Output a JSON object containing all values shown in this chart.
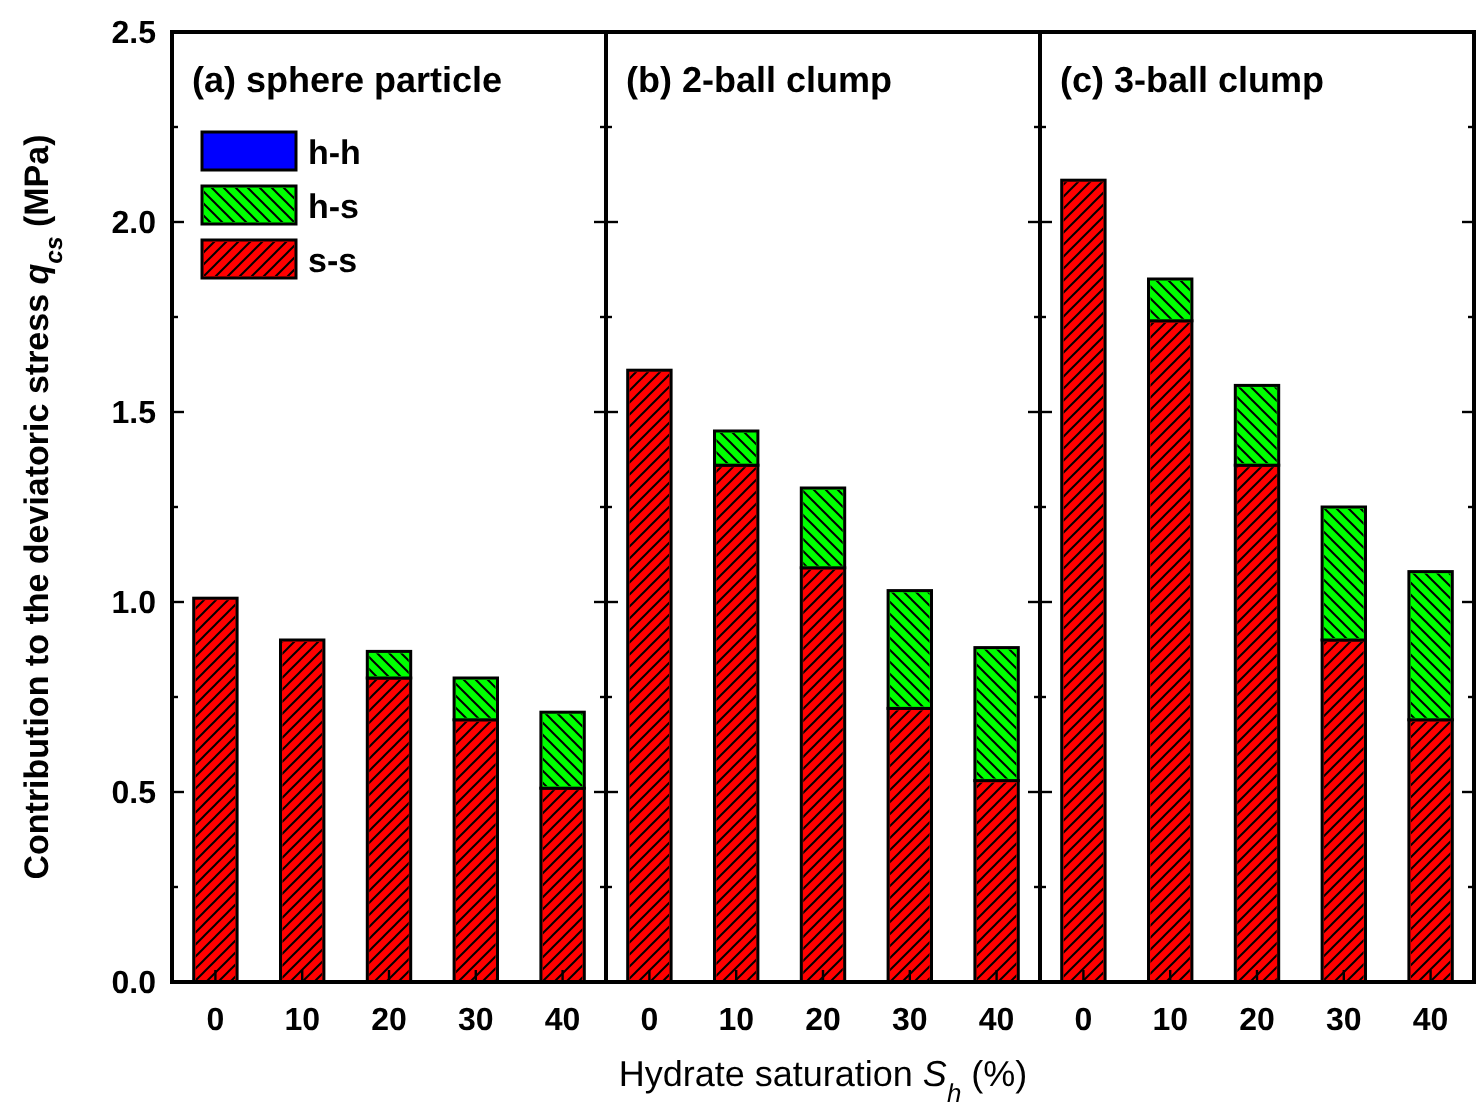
{
  "chart_data": [
    {
      "type": "bar",
      "stacked": true,
      "title": "(a) sphere particle",
      "ylabel": "Contribution to the deviatoric stress q$_{cs}$ (MPa)",
      "categories": [
        "0",
        "10",
        "20",
        "30",
        "40"
      ],
      "ylim": [
        0,
        2.5
      ],
      "yticks": [
        {
          "value": 0,
          "label": "0.0"
        },
        {
          "value": 0.25,
          "label": null
        },
        {
          "value": 0.5,
          "label": "0.5"
        },
        {
          "value": 0.75,
          "label": null
        },
        {
          "value": 1,
          "label": "1.0"
        },
        {
          "value": 1.25,
          "label": null
        },
        {
          "value": 1.5,
          "label": "1.5"
        },
        {
          "value": 1.75,
          "label": null
        },
        {
          "value": 2,
          "label": "2.0"
        },
        {
          "value": 2.25,
          "label": null
        },
        {
          "value": 2.5,
          "label": "2.5"
        }
      ],
      "legend": "top left",
      "series": [
        {
          "name": "s-s",
          "color": "#ff0000",
          "values": [
            1.01,
            0.9,
            0.8,
            0.69,
            0.51
          ]
        },
        {
          "name": "h-s",
          "color": "#00ff00",
          "values": [
            0,
            0,
            0.07,
            0.11,
            0.2
          ]
        },
        {
          "name": "h-h",
          "color": "#0000ff",
          "values": [
            0,
            0,
            0,
            0,
            0
          ]
        }
      ]
    },
    {
      "type": "bar",
      "stacked": true,
      "title": "(b) 2-ball clump",
      "xlabel": "Hydrate saturation S$_{h}$ (%)",
      "categories": [
        "0",
        "10",
        "20",
        "30",
        "40"
      ],
      "ylim": [
        0,
        2.5
      ],
      "tick_labels": "x",
      "series": [
        {
          "color": "#ff0000",
          "values": [
            1.61,
            1.36,
            1.09,
            0.72,
            0.53
          ]
        },
        {
          "color": "#00ff00",
          "values": [
            0,
            0.09,
            0.21,
            0.31,
            0.35
          ]
        },
        {
          "color": "#0000ff",
          "values": [
            0,
            0,
            0,
            0,
            0
          ]
        }
      ]
    },
    {
      "type": "bar",
      "stacked": true,
      "title": "(c) 3-ball clump",
      "categories": [
        "0",
        "10",
        "20",
        "30",
        "40"
      ],
      "ylim": [
        0,
        2.5
      ],
      "tick_labels": "x",
      "series": [
        {
          "color": "#ff0000",
          "values": [
            2.11,
            1.74,
            1.36,
            0.9,
            0.69
          ]
        },
        {
          "color": "#00ff00",
          "values": [
            0,
            0.11,
            0.21,
            0.35,
            0.39
          ]
        },
        {
          "color": "#0000ff",
          "values": [
            0,
            0,
            0,
            0,
            0
          ]
        }
      ]
    }
  ]
}
